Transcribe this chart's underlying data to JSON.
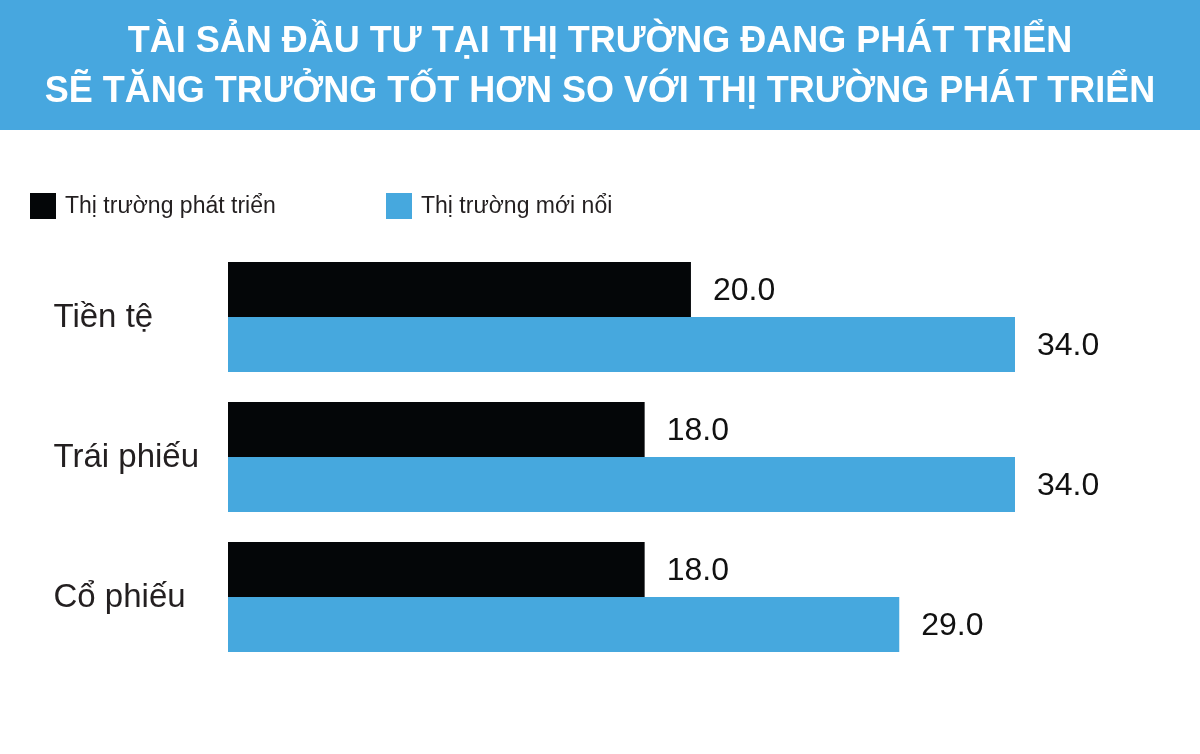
{
  "chart_data": {
    "type": "bar",
    "orientation": "horizontal",
    "title": "TÀI SẢN ĐẦU TƯ TẠI THỊ TRƯỜNG ĐANG PHÁT TRIỂN\nSẼ TĂNG TRƯỞNG TỐT HƠN SO VỚI THỊ TRƯỜNG PHÁT TRIỂN",
    "categories": [
      "Tiền tệ",
      "Trái phiếu",
      "Cổ phiếu"
    ],
    "series": [
      {
        "name": "Thị trường phát triển",
        "color": "#040608",
        "values": [
          20,
          18,
          18
        ],
        "value_labels": [
          "20.0",
          "18.0",
          "18.0"
        ]
      },
      {
        "name": "Thị trường mới nổi",
        "color": "#46a8de",
        "values": [
          34,
          34,
          29
        ],
        "value_labels": [
          "34.0",
          "34.0",
          "29.0"
        ]
      }
    ],
    "legend": "top left",
    "tick_labels": "y"
  }
}
